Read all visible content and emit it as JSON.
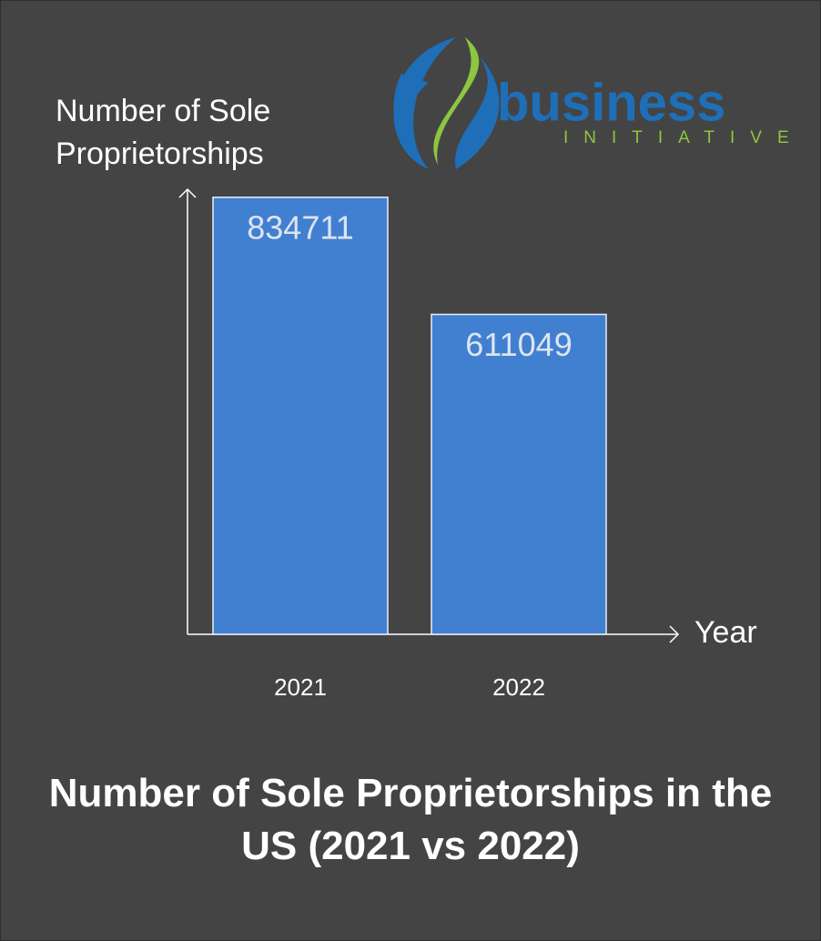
{
  "chart_data": {
    "type": "bar",
    "title": "Number of Sole Proprietorships in the US (2021 vs 2022)",
    "y_label": "Number of Sole Proprietorships",
    "x_label": "Year",
    "categories": [
      "2021",
      "2022"
    ],
    "values": [
      834711,
      611049
    ],
    "color": "#4180d0",
    "ylim": [
      0,
      850000
    ],
    "grid": false
  },
  "logo": {
    "name": "business",
    "tagline": "INITIATIVE"
  }
}
